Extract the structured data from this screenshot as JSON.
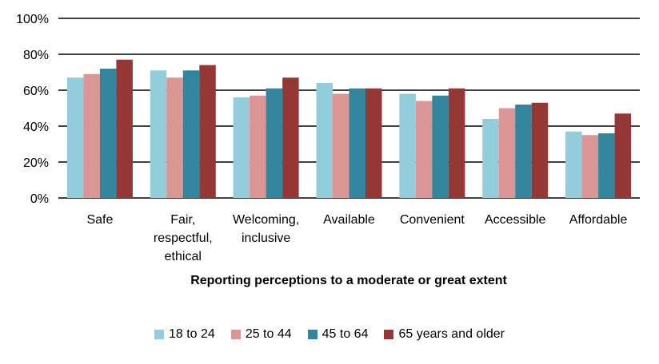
{
  "chart_data": {
    "type": "bar",
    "xlabel": "Reporting perceptions to a moderate or great extent",
    "ylabel": "",
    "ylim": [
      0,
      100
    ],
    "yticks": [
      "0%",
      "20%",
      "40%",
      "60%",
      "80%",
      "100%"
    ],
    "grid": true,
    "legend_position": "bottom",
    "categories": [
      [
        "Safe"
      ],
      [
        "Fair,",
        "respectful,",
        "ethical"
      ],
      [
        "Welcoming,",
        "inclusive"
      ],
      [
        "Available"
      ],
      [
        "Convenient"
      ],
      [
        "Accessible"
      ],
      [
        "Affordable"
      ]
    ],
    "series": [
      {
        "name": "18 to 24",
        "color": "#92CDDC",
        "values": [
          67,
          71,
          56,
          64,
          58,
          44,
          37
        ]
      },
      {
        "name": "25 to 44",
        "color": "#DA9694",
        "values": [
          69,
          67,
          57,
          58,
          54,
          50,
          35
        ]
      },
      {
        "name": "45 to 64",
        "color": "#31859C",
        "values": [
          72,
          71,
          61,
          61,
          57,
          52,
          36
        ]
      },
      {
        "name": "65 years and older",
        "color": "#953735",
        "values": [
          77,
          74,
          67,
          61,
          61,
          53,
          47
        ]
      }
    ]
  }
}
